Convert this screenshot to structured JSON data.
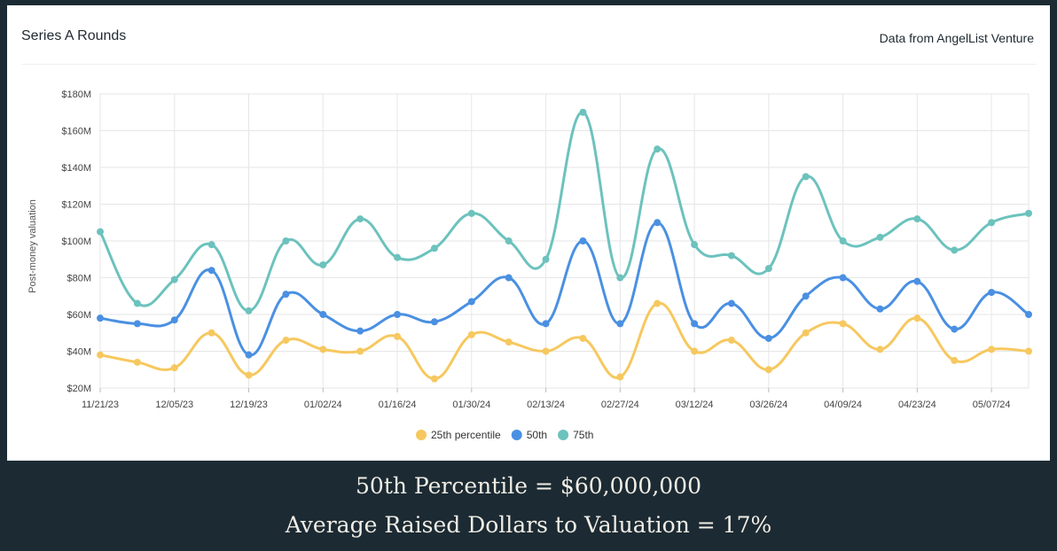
{
  "card": {
    "title": "Series A Rounds",
    "source": "Data from AngelList Venture"
  },
  "footer": {
    "line1": "50th Percentile = $60,000,000",
    "line2": "Average Raised Dollars to Valuation = 17%"
  },
  "chart_data": {
    "type": "line",
    "title": "Series A Rounds",
    "ylabel": "Post-money valuation",
    "xlabel": "",
    "ylim": [
      20,
      180
    ],
    "y_ticks": [
      20,
      40,
      60,
      80,
      100,
      120,
      140,
      160,
      180
    ],
    "y_tick_labels": [
      "$20M",
      "$40M",
      "$60M",
      "$80M",
      "$100M",
      "$120M",
      "$140M",
      "$160M",
      "$180M"
    ],
    "x_tick_labels": [
      "11/21/23",
      "12/05/23",
      "12/19/23",
      "01/02/24",
      "01/16/24",
      "01/30/24",
      "02/13/24",
      "02/27/24",
      "03/12/24",
      "03/26/24",
      "04/09/24",
      "04/23/24",
      "05/07/24"
    ],
    "x": [
      "11/21/23",
      "11/28/23",
      "12/05/23",
      "12/12/23",
      "12/19/23",
      "12/26/23",
      "01/02/24",
      "01/09/24",
      "01/16/24",
      "01/23/24",
      "01/30/24",
      "02/06/24",
      "02/13/24",
      "02/20/24",
      "02/27/24",
      "03/05/24",
      "03/12/24",
      "03/19/24",
      "03/26/24",
      "04/02/24",
      "04/09/24",
      "04/16/24",
      "04/23/24",
      "04/30/24",
      "05/07/24",
      "05/14/24"
    ],
    "series": [
      {
        "name": "25th percentile",
        "color": "#f6c85f",
        "values": [
          38,
          34,
          31,
          50,
          27,
          46,
          41,
          40,
          48,
          25,
          49,
          45,
          40,
          47,
          26,
          66,
          40,
          46,
          30,
          50,
          55,
          41,
          58,
          35,
          41,
          40
        ]
      },
      {
        "name": "50th",
        "color": "#4a90e2",
        "values": [
          58,
          55,
          57,
          84,
          38,
          71,
          60,
          51,
          60,
          56,
          67,
          80,
          55,
          100,
          55,
          110,
          55,
          66,
          47,
          70,
          80,
          63,
          78,
          52,
          72,
          60
        ]
      },
      {
        "name": "75th",
        "color": "#6cc2bd",
        "values": [
          105,
          66,
          79,
          98,
          62,
          100,
          87,
          112,
          91,
          96,
          115,
          100,
          90,
          170,
          80,
          150,
          98,
          92,
          85,
          135,
          100,
          102,
          112,
          95,
          110,
          115
        ]
      }
    ],
    "grid": true,
    "legend_position": "bottom-center"
  }
}
